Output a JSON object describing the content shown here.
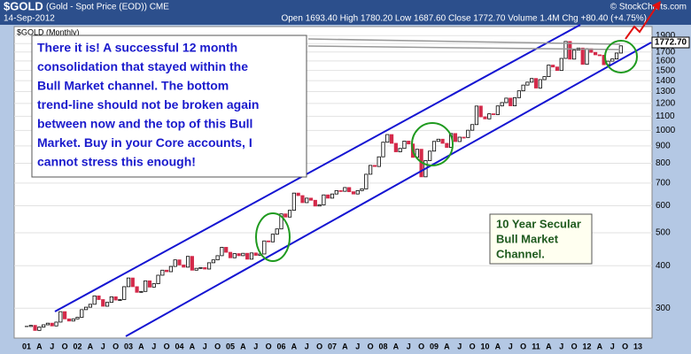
{
  "chart_data": {
    "type": "candlestick",
    "title": "$GOLD",
    "subtitle": "(Gold - Spot Price (EOD)) CME",
    "date": "14-Sep-2012",
    "quote": "Open 1693.40 High 1780.20 Low 1687.60 Close 1772.70 Volume 1.4M Chg +80.40 (+4.75%)",
    "source": "© StockCharts.com",
    "legend": "$GOLD (Monthly)",
    "last_price_label": "1772.70",
    "annotation": [
      "There it is! A successful 12 month",
      "consolidation that stayed within the",
      "Bull Market channel.  The bottom",
      "trend-line should not be broken again",
      "between now and the top of this Bull",
      "Market.  Buy in your Core accounts, I",
      "cannot stress this enough!"
    ],
    "annotation2": [
      "10 Year Secular",
      "Bull Market",
      "Channel."
    ],
    "categories": [
      "01",
      null,
      null,
      "A",
      null,
      null,
      "J",
      null,
      null,
      "O",
      null,
      null,
      "02",
      null,
      null,
      "A",
      null,
      null,
      "J",
      null,
      null,
      "O",
      null,
      null,
      "03",
      null,
      null,
      "A",
      null,
      null,
      "J",
      null,
      null,
      "O",
      null,
      null,
      "04",
      null,
      null,
      "A",
      null,
      null,
      "J",
      null,
      null,
      "O",
      null,
      null,
      "05",
      null,
      null,
      "A",
      null,
      null,
      "J",
      null,
      null,
      "O",
      null,
      null,
      "06",
      null,
      null,
      "A",
      null,
      null,
      "J",
      null,
      null,
      "O",
      null,
      null,
      "07",
      null,
      null,
      "A",
      null,
      null,
      "J",
      null,
      null,
      "O",
      null,
      null,
      "08",
      null,
      null,
      "A",
      null,
      null,
      "J",
      null,
      null,
      "O",
      null,
      null,
      "09",
      null,
      null,
      "A",
      null,
      null,
      "J",
      null,
      null,
      "O",
      null,
      null,
      "10",
      null,
      null,
      "A",
      null,
      null,
      "J",
      null,
      null,
      "O",
      null,
      null,
      "11",
      null,
      null,
      "A",
      null,
      null,
      "J",
      null,
      null,
      "O",
      null,
      null,
      "12",
      null,
      null,
      "A",
      null,
      null,
      "J",
      null,
      null,
      "O",
      null,
      null,
      "13"
    ],
    "values": [
      265,
      267,
      258,
      264,
      268,
      271,
      266,
      273,
      293,
      279,
      275,
      279,
      282,
      297,
      302,
      308,
      326,
      318,
      304,
      312,
      324,
      317,
      318,
      347,
      368,
      347,
      334,
      336,
      361,
      346,
      354,
      375,
      388,
      384,
      398,
      416,
      402,
      396,
      426,
      388,
      393,
      395,
      391,
      408,
      416,
      428,
      453,
      438,
      422,
      434,
      428,
      435,
      418,
      436,
      429,
      433,
      473,
      470,
      495,
      513,
      568,
      556,
      582,
      654,
      643,
      613,
      632,
      623,
      599,
      604,
      646,
      632,
      650,
      665,
      662,
      679,
      660,
      650,
      665,
      673,
      743,
      789,
      783,
      836,
      923,
      972,
      916,
      865,
      885,
      930,
      912,
      833,
      880,
      730,
      815,
      869,
      928,
      942,
      916,
      891,
      979,
      927,
      955,
      953,
      1001,
      1040,
      1179,
      1096,
      1081,
      1119,
      1113,
      1180,
      1207,
      1244,
      1181,
      1248,
      1307,
      1359,
      1386,
      1421,
      1332,
      1410,
      1439,
      1556,
      1536,
      1500,
      1628,
      1826,
      1620,
      1722,
      1746,
      1564,
      1738,
      1696,
      1668,
      1664,
      1560,
      1598,
      1622,
      1688,
      1772.7,
      null,
      null,
      null,
      null
    ],
    "up_color": "#ffffff",
    "down_color": "#d42a4a",
    "log_scale": true,
    "ylim": [
      245,
      2020
    ],
    "yticks": [
      300,
      400,
      500,
      600,
      700,
      800,
      900,
      1000,
      1100,
      1200,
      1300,
      1400,
      1500,
      1600,
      1700,
      1800,
      1900
    ],
    "grid": true
  }
}
